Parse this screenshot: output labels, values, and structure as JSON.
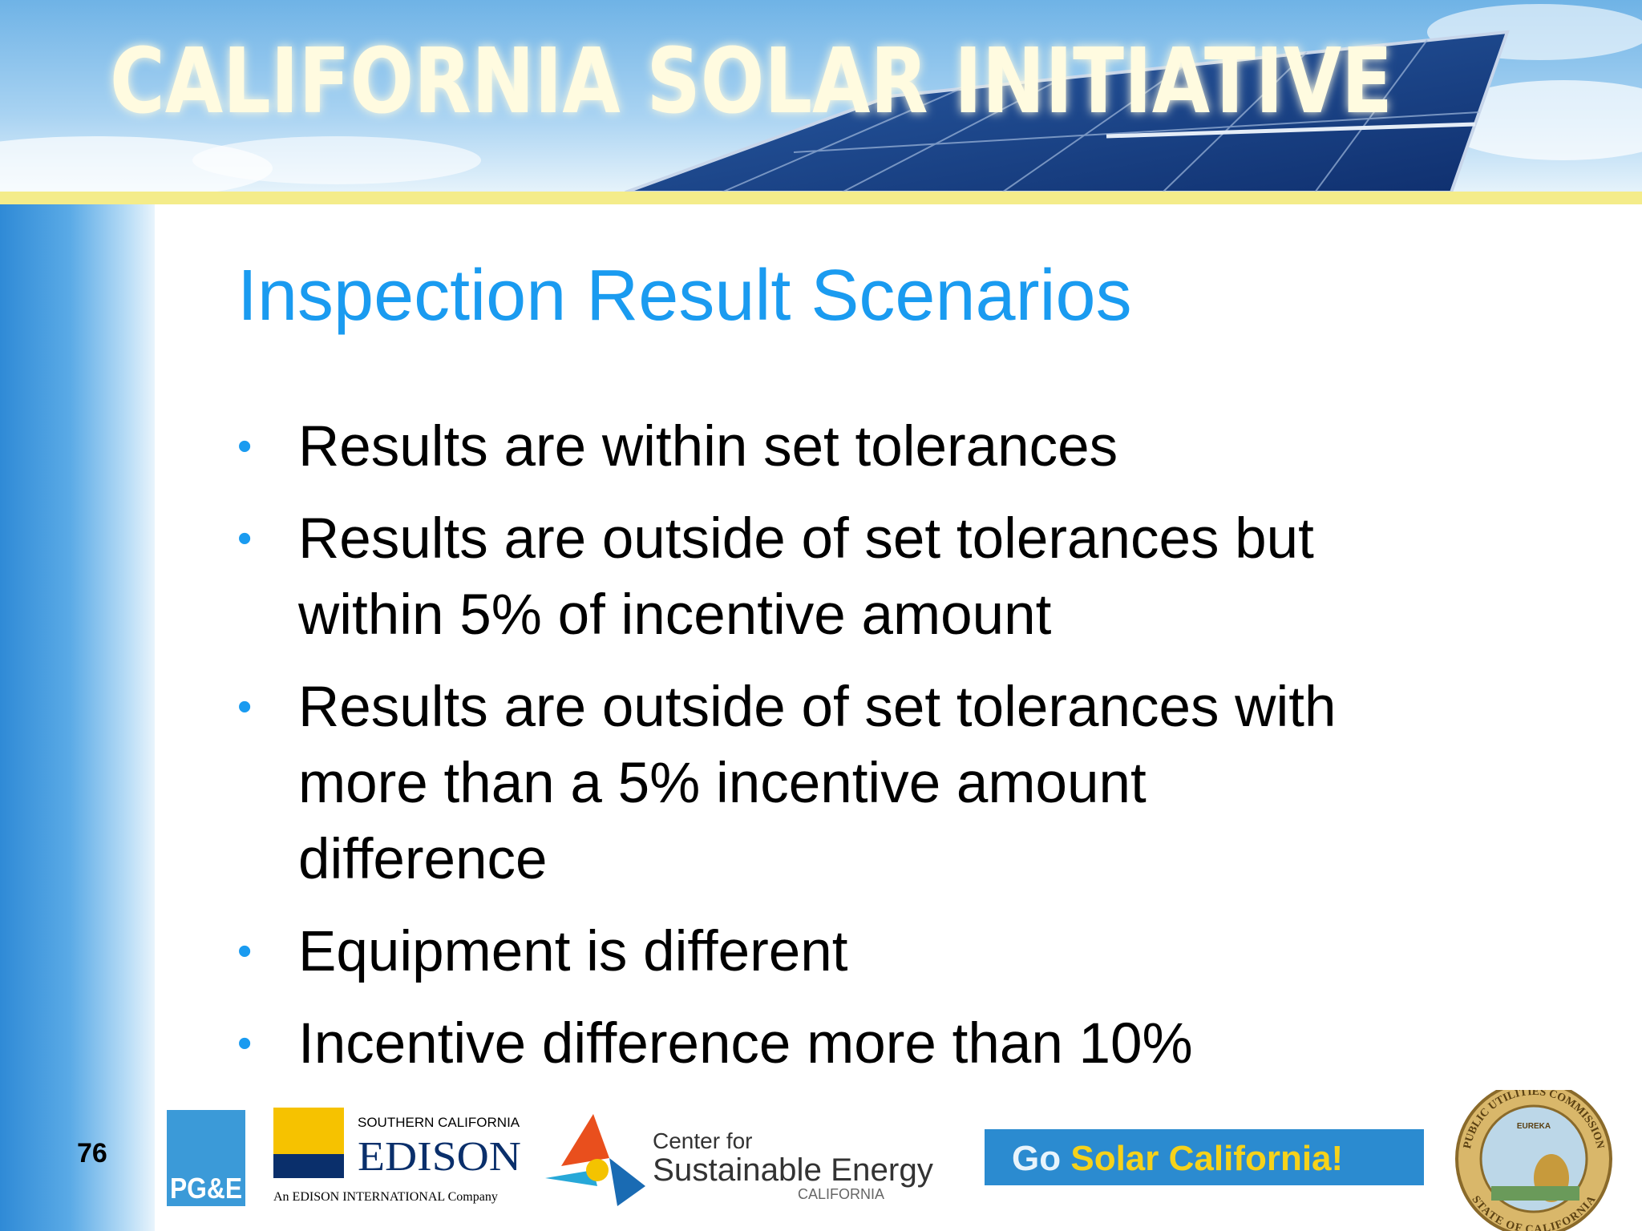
{
  "header": {
    "banner": "CALIFORNIA SOLAR INITIATIVE"
  },
  "slide": {
    "title": "Inspection Result Scenarios",
    "bullets": [
      [
        "Results are within set tolerances"
      ],
      [
        "Results are outside of set tolerances but",
        "within 5% of incentive amount"
      ],
      [
        "Results are outside of set tolerances with",
        "more than a 5% incentive amount",
        "difference"
      ],
      [
        "Equipment is different"
      ],
      [
        "Incentive difference  more than 10%"
      ]
    ],
    "page_number": "76"
  },
  "footer": {
    "pge": "PG&E",
    "sce": {
      "top": "SOUTHERN CALIFORNIA",
      "name": "EDISON",
      "tagline": "An EDISON INTERNATIONAL Company"
    },
    "cse": {
      "line1": "Center for",
      "line2": "Sustainable Energy",
      "line3": "CALIFORNIA"
    },
    "go_solar": {
      "go": "Go",
      "rest": "Solar California!"
    },
    "seal": {
      "top": "PUBLIC UTILITIES COMMISSION",
      "bottom": "STATE OF CALIFORNIA",
      "motto": "EUREKA"
    }
  }
}
